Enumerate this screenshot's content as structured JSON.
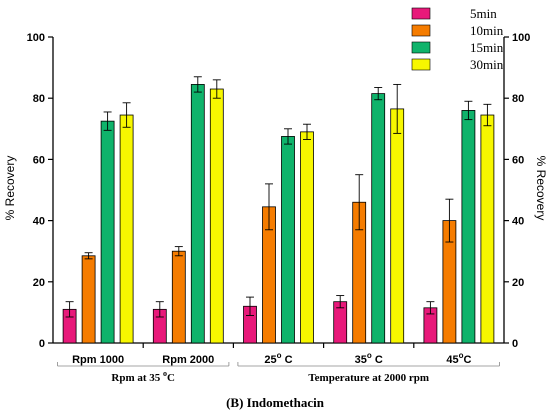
{
  "chart_data": {
    "type": "bar",
    "ylabel": "% Recovery",
    "ylabel_right": "% Recovery",
    "ylim": [
      0,
      100
    ],
    "yticks": [
      0,
      20,
      40,
      60,
      80,
      100
    ],
    "categories": [
      {
        "main": "Rpm 1000",
        "sup": ""
      },
      {
        "main": "Rpm 2000",
        "sup": ""
      },
      {
        "main": "25",
        "sup": "o",
        "tail": " C"
      },
      {
        "main": "35",
        "sup": "o",
        "tail": " C"
      },
      {
        "main": "45",
        "sup": "o",
        "tail": "C"
      }
    ],
    "series": [
      {
        "name": "5min",
        "color": "#e8197a",
        "values": [
          11,
          11,
          12,
          13.5,
          11.5
        ],
        "errors": [
          2.5,
          2.5,
          3,
          2,
          2
        ]
      },
      {
        "name": "10min",
        "color": "#f57c00",
        "values": [
          28.5,
          30,
          44.5,
          46,
          40
        ],
        "errors": [
          1,
          1.5,
          7.5,
          9,
          7
        ]
      },
      {
        "name": "15min",
        "color": "#0fb36b",
        "values": [
          72.5,
          84.5,
          67.5,
          81.5,
          76
        ],
        "errors": [
          3,
          2.5,
          2.5,
          2,
          3
        ]
      },
      {
        "name": "30min",
        "color": "#f7f700",
        "values": [
          74.5,
          83,
          69,
          76.5,
          74.5
        ],
        "errors": [
          4,
          3,
          2.5,
          8,
          3.5
        ]
      }
    ],
    "group_labels": [
      {
        "text": "Rpm at 35 ",
        "sup": "o",
        "tail": "C"
      },
      {
        "text": "Temperature at 2000 rpm"
      }
    ],
    "caption": "(B) Indomethacin",
    "legend_position": "top-right"
  }
}
